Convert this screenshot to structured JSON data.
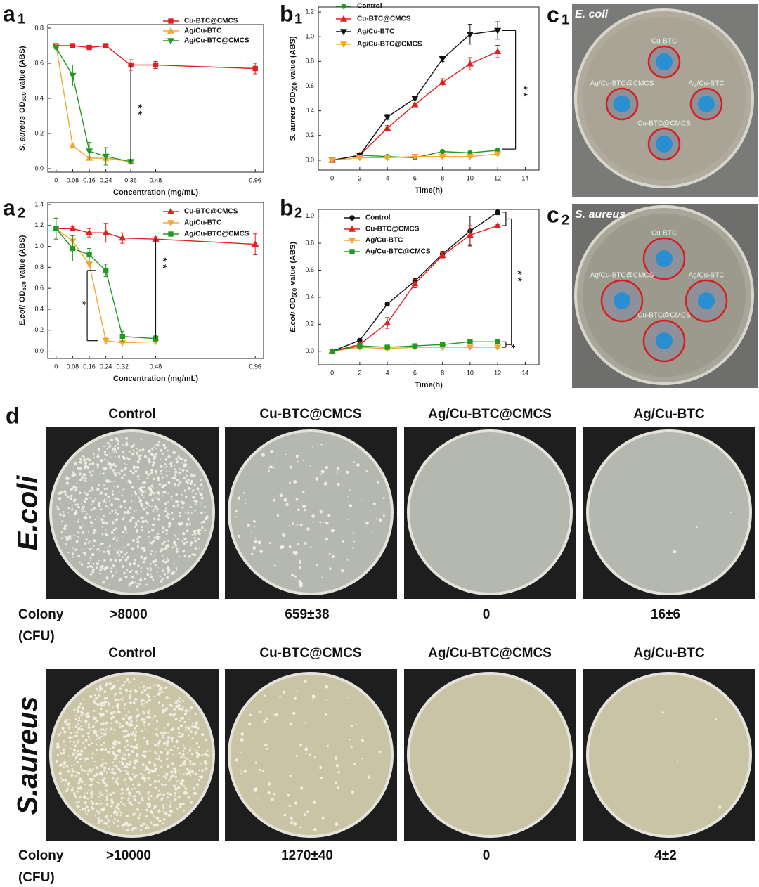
{
  "chart_data": [
    {
      "type": "line",
      "panel": "a",
      "panel_sub": "1",
      "xlabel": "Concentration (mg/mL)",
      "ylabel": {
        "species": "S. aureus",
        "measure": "OD",
        "sub": "600",
        "unit": "value (ABS)"
      },
      "x": [
        0,
        0.08,
        0.16,
        0.24,
        0.36,
        0.48,
        0.96
      ],
      "xlim": [
        -0.04,
        1.0
      ],
      "xticks": [
        0,
        0.08,
        0.16,
        0.24,
        0.36,
        0.48,
        0.96
      ],
      "ylim": [
        -0.02,
        0.82
      ],
      "yticks": [
        {
          "value": 0,
          "label": "0.0"
        },
        0.2,
        0.4,
        0.6,
        0.8
      ],
      "series": [
        {
          "name": "Cu-BTC@CMCS",
          "color": "#e02020",
          "marker": "square",
          "values": [
            0.7,
            0.7,
            0.69,
            0.7,
            0.59,
            0.59,
            0.57
          ],
          "errors": [
            0.01,
            0.01,
            0.01,
            0.01,
            0.03,
            0.02,
            0.03
          ]
        },
        {
          "name": "Ag/Cu-BTC",
          "color": "#f0a830",
          "marker": "triangle",
          "values": [
            0.7,
            0.13,
            0.06,
            0.06,
            0.04,
            null,
            null
          ],
          "errors": [
            0.01,
            0.01,
            0.01,
            0.02,
            0.01,
            null,
            null
          ]
        },
        {
          "name": "Ag/Cu-BTC@CMCS",
          "color": "#229922",
          "marker": "triangle-down",
          "values": [
            0.69,
            0.53,
            0.1,
            0.07,
            0.04,
            null,
            null
          ],
          "errors": [
            0.01,
            0.06,
            0.05,
            0.05,
            0.01,
            null,
            null
          ]
        }
      ],
      "annotations": [
        "**"
      ]
    },
    {
      "type": "line",
      "panel": "a",
      "panel_sub": "2",
      "xlabel": "Concentration (mg/mL)",
      "ylabel": {
        "species": "E.coli",
        "measure": "OD",
        "sub": "600",
        "unit": "value (ABS)"
      },
      "x": [
        0,
        0.08,
        0.16,
        0.24,
        0.32,
        0.48,
        0.96
      ],
      "xlim": [
        -0.04,
        1.0
      ],
      "xticks": [
        0,
        0.08,
        0.16,
        0.24,
        0.32,
        0.48,
        0.96
      ],
      "ylim": [
        -0.07,
        1.42
      ],
      "yticks": [
        {
          "value": 0,
          "label": "0.0"
        },
        0.2,
        0.4,
        0.6,
        0.8,
        {
          "value": 1,
          "label": "1.0"
        },
        1.2,
        1.4
      ],
      "series": [
        {
          "name": "Cu-BTC@CMCS",
          "color": "#e02020",
          "marker": "triangle",
          "values": [
            1.17,
            1.17,
            1.13,
            1.13,
            1.08,
            1.07,
            1.02
          ],
          "errors": [
            0.1,
            0.02,
            0.04,
            0.09,
            0.05,
            0.02,
            0.1
          ]
        },
        {
          "name": "Ag/Cu-BTC",
          "color": "#f0a830",
          "marker": "triangle-down",
          "values": [
            1.17,
            1.05,
            0.83,
            0.1,
            0.08,
            0.09,
            null
          ],
          "errors": [
            0.1,
            0.05,
            0.02,
            0.03,
            0.01,
            0.02,
            null
          ]
        },
        {
          "name": "Ag/Cu-BTC@CMCS",
          "color": "#229922",
          "marker": "square",
          "values": [
            1.17,
            0.98,
            0.92,
            0.77,
            0.14,
            0.12,
            null
          ],
          "errors": [
            0.1,
            0.12,
            0.06,
            0.06,
            0.05,
            0.03,
            null
          ]
        }
      ],
      "annotations": [
        "*",
        "**"
      ]
    },
    {
      "type": "line",
      "panel": "b",
      "panel_sub": "1",
      "xlabel": "Time(h)",
      "ylabel": {
        "species": "S. aureus",
        "measure": "OD",
        "sub": "600",
        "unit": "value (ABS)"
      },
      "x": [
        0,
        2,
        4,
        6,
        8,
        10,
        12
      ],
      "xlim": [
        -1,
        15
      ],
      "xticks": [
        0,
        2,
        4,
        6,
        8,
        10,
        12,
        14
      ],
      "ylim": [
        -0.08,
        1.24
      ],
      "yticks": [
        {
          "value": 0,
          "label": "0.0"
        },
        0.2,
        0.4,
        0.6,
        0.8,
        {
          "value": 1,
          "label": "1.0"
        },
        1.2
      ],
      "series": [
        {
          "name": "Control",
          "color": "#229922",
          "marker": "circle",
          "values": [
            0,
            0.04,
            0.03,
            0.02,
            0.07,
            0.06,
            0.08
          ],
          "errors": [
            0,
            0.01,
            0.01,
            0.01,
            0.01,
            0.01,
            0.01
          ]
        },
        {
          "name": "Cu-BTC@CMCS",
          "color": "#e02020",
          "marker": "triangle",
          "values": [
            0,
            0.04,
            0.26,
            0.45,
            0.63,
            0.78,
            0.88
          ],
          "errors": [
            0,
            0.01,
            0.02,
            0.01,
            0.03,
            0.05,
            0.05
          ]
        },
        {
          "name": "Ag/Cu-BTC",
          "color": "#111111",
          "marker": "triangle-down",
          "values": [
            0,
            0.04,
            0.35,
            0.5,
            0.82,
            1.02,
            1.05
          ],
          "errors": [
            0,
            0.01,
            0.02,
            0.01,
            0.02,
            0.08,
            0.07
          ]
        },
        {
          "name": "Ag/Cu-BTC@CMCS",
          "color": "#f0a830",
          "marker": "triangle-down",
          "values": [
            0,
            0.02,
            0.02,
            0.03,
            0.03,
            0.03,
            0.05
          ],
          "errors": [
            0,
            0.01,
            0.01,
            0.01,
            0.01,
            0.01,
            0.01
          ]
        }
      ],
      "annotations": [
        "**"
      ]
    },
    {
      "type": "line",
      "panel": "b",
      "panel_sub": "2",
      "xlabel": "Time(h)",
      "ylabel": {
        "species": "E.coli",
        "measure": "OD",
        "sub": "600",
        "unit": "value (ABS)"
      },
      "x": [
        0,
        2,
        4,
        6,
        8,
        10,
        12
      ],
      "xlim": [
        -1,
        15
      ],
      "xticks": [
        0,
        2,
        4,
        6,
        8,
        10,
        12,
        14
      ],
      "ylim": [
        -0.1,
        1.05
      ],
      "yticks": [
        {
          "value": 0,
          "label": "0.0"
        },
        0.2,
        0.4,
        0.6,
        0.8,
        {
          "value": 1,
          "label": "1.0"
        }
      ],
      "series": [
        {
          "name": "Control",
          "color": "#111111",
          "marker": "circle",
          "values": [
            0,
            0.08,
            0.35,
            0.52,
            0.72,
            0.89,
            1.03
          ],
          "errors": [
            0,
            0.01,
            0.01,
            0.02,
            0.02,
            0.11,
            0.02
          ]
        },
        {
          "name": "Cu-BTC@CMCS",
          "color": "#e02020",
          "marker": "triangle",
          "values": [
            0,
            0.05,
            0.21,
            0.5,
            0.71,
            0.86,
            0.93
          ],
          "errors": [
            0,
            0.01,
            0.04,
            0.03,
            0.02,
            0.07,
            0.01
          ]
        },
        {
          "name": "Ag/Cu-BTC",
          "color": "#f0a830",
          "marker": "triangle-down",
          "values": [
            0,
            0.03,
            0.02,
            0.03,
            0.03,
            0.03,
            0.03
          ],
          "errors": [
            0,
            0.01,
            0.01,
            0.01,
            0.01,
            0.01,
            0.01
          ]
        },
        {
          "name": "Ag/Cu-BTC@CMCS",
          "color": "#229922",
          "marker": "square",
          "values": [
            0,
            0.04,
            0.03,
            0.04,
            0.05,
            0.07,
            0.07
          ],
          "errors": [
            0,
            0.01,
            0.01,
            0.01,
            0.01,
            0.01,
            0.01
          ]
        }
      ],
      "annotations": [
        "**",
        "*"
      ]
    }
  ],
  "panel_c": [
    {
      "panel": "c",
      "panel_sub": "1",
      "species": "E. coli",
      "samples": [
        "Cu-BTC",
        "Ag/Cu-BTC@CMCS",
        "Ag/Cu-BTC",
        "Cu-BTC@CMCS"
      ]
    },
    {
      "panel": "c",
      "panel_sub": "2",
      "species": "S. aureus",
      "samples": [
        "Cu-BTC",
        "Ag/Cu-BTC@CMCS",
        "Ag/Cu-BTC",
        "Cu-BTC@CMCS"
      ]
    }
  ],
  "panel_d": {
    "panel": "d",
    "rows": [
      {
        "species": "E.coli",
        "headers": [
          "Control",
          "Cu-BTC@CMCS",
          "Ag/Cu-BTC@CMCS",
          "Ag/Cu-BTC"
        ],
        "colony": "Colony",
        "unit": "(CFU)",
        "counts": [
          ">8000",
          "659±38",
          "0",
          "16±6"
        ]
      },
      {
        "species": "S.aureus",
        "headers": [
          "Control",
          "Cu-BTC@CMCS",
          "Ag/Cu-BTC@CMCS",
          "Ag/Cu-BTC"
        ],
        "colony": "Colony",
        "unit": "(CFU)",
        "counts": [
          ">10000",
          "1270±40",
          "0",
          "4±2"
        ]
      }
    ]
  }
}
